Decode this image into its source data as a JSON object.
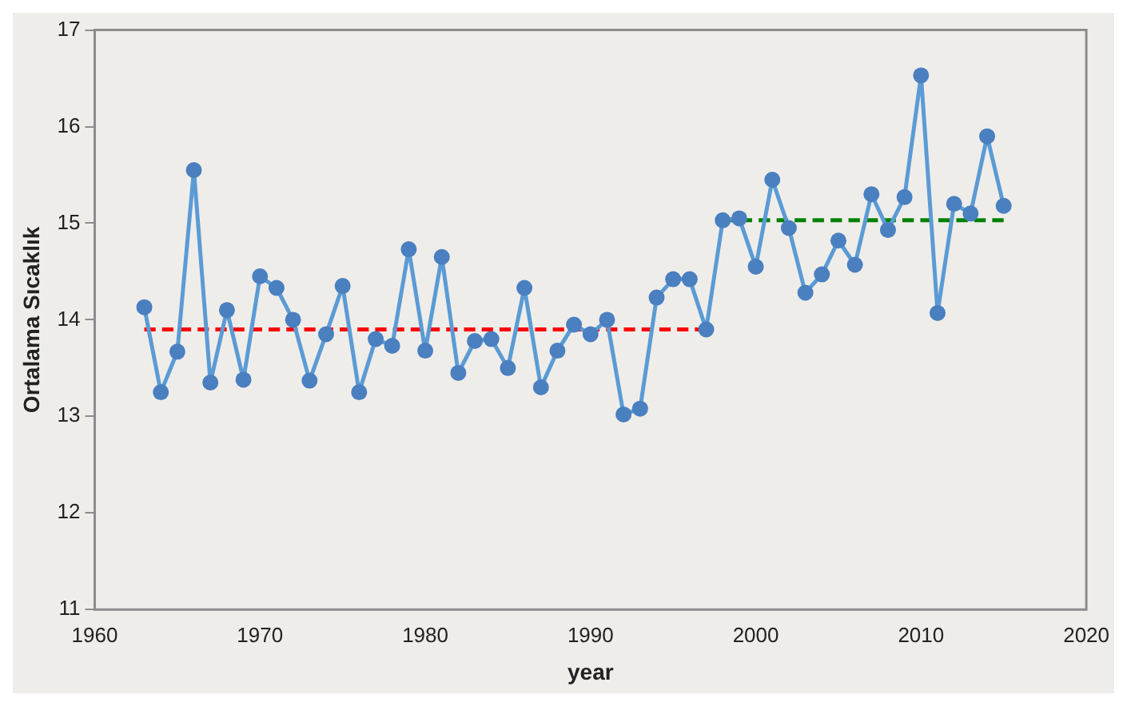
{
  "chart_data": {
    "type": "line",
    "xlabel": "year",
    "ylabel": "Ortalama Sıcaklık",
    "xlim": [
      1960,
      2020
    ],
    "xticks": [
      1960,
      1970,
      1980,
      1990,
      2000,
      2010,
      2020
    ],
    "ylim": [
      11,
      17
    ],
    "yticks": [
      11,
      12,
      13,
      14,
      15,
      16,
      17
    ],
    "grid": false,
    "legend": false,
    "series": [
      {
        "color": "#5b9bd5",
        "marker": "circle",
        "line_style": "solid",
        "x": [
          1963,
          1964,
          1965,
          1966,
          1967,
          1968,
          1969,
          1970,
          1971,
          1972,
          1973,
          1974,
          1975,
          1976,
          1977,
          1978,
          1979,
          1980,
          1981,
          1982,
          1983,
          1984,
          1985,
          1986,
          1987,
          1988,
          1989,
          1990,
          1991,
          1992,
          1993,
          1994,
          1995,
          1996,
          1997,
          1998,
          1999,
          2000,
          2001,
          2002,
          2003,
          2004,
          2005,
          2006,
          2007,
          2008,
          2009,
          2010,
          2011,
          2012,
          2013,
          2014,
          2015
        ],
        "values": [
          14.13,
          13.25,
          13.67,
          15.55,
          13.35,
          14.1,
          13.38,
          14.45,
          14.33,
          14.0,
          13.37,
          13.85,
          14.35,
          13.25,
          13.8,
          13.73,
          14.73,
          13.68,
          14.65,
          13.45,
          13.78,
          13.8,
          13.5,
          14.33,
          13.3,
          13.68,
          13.95,
          13.85,
          14.0,
          13.02,
          13.08,
          14.23,
          14.42,
          14.42,
          13.9,
          15.03,
          15.05,
          14.55,
          15.45,
          14.95,
          14.28,
          14.47,
          14.82,
          14.57,
          15.3,
          14.93,
          15.27,
          16.53,
          14.07,
          15.2,
          15.1,
          15.9,
          15.18
        ]
      },
      {
        "color": "#ff0000",
        "marker": "none",
        "line_style": "dashed",
        "x": [
          1963,
          1997
        ],
        "values": [
          13.9,
          13.9
        ]
      },
      {
        "color": "#008000",
        "marker": "none",
        "line_style": "dashed",
        "x": [
          1998,
          2015
        ],
        "values": [
          15.03,
          15.03
        ]
      }
    ]
  }
}
